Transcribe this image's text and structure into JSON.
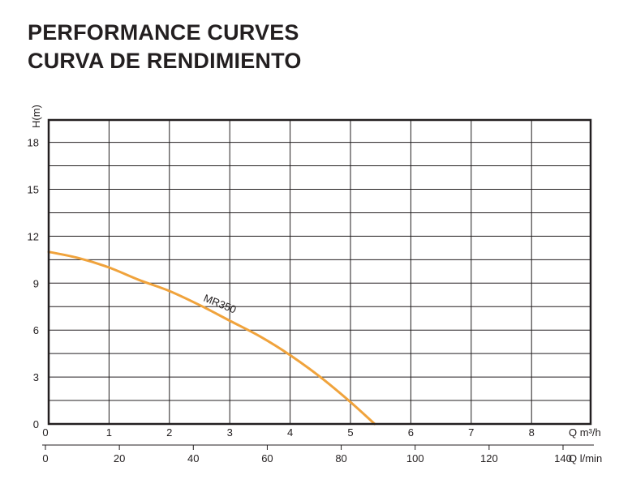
{
  "titles": {
    "line1": "PERFORMANCE CURVES",
    "line2": "CURVA DE RENDIMIENTO"
  },
  "colors": {
    "curve": "#f0a33c",
    "grid": "#231f20",
    "text": "#231f20"
  },
  "chart_data": {
    "type": "line",
    "ylabel": "H(m)",
    "xlabel": "Q m³/h",
    "x2label": "Q l/min",
    "ylim": [
      0,
      19.5
    ],
    "xlim": [
      0,
      9
    ],
    "x2lim": [
      0,
      148
    ],
    "y_ticks": [
      "0",
      "3",
      "6",
      "9",
      "12",
      "15",
      "18"
    ],
    "y_tick_values": [
      0,
      3,
      6,
      9,
      12,
      15,
      18
    ],
    "x_ticks": [
      "0",
      "1",
      "2",
      "3",
      "4",
      "5",
      "6",
      "7",
      "8"
    ],
    "x_tick_values": [
      0,
      1,
      2,
      3,
      4,
      5,
      6,
      7,
      8
    ],
    "x2_ticks": [
      "0",
      "20",
      "40",
      "60",
      "80",
      "100",
      "120",
      "140"
    ],
    "x2_tick_values": [
      0,
      20,
      40,
      60,
      80,
      100,
      120,
      140
    ],
    "grid": true,
    "series": [
      {
        "name": "MR350",
        "x": [
          0,
          0.5,
          1,
          1.5,
          2,
          2.5,
          3,
          3.5,
          4,
          4.5,
          5,
          5.4
        ],
        "y": [
          11.0,
          10.6,
          10.0,
          9.2,
          8.5,
          7.6,
          6.6,
          5.6,
          4.4,
          3.0,
          1.4,
          0
        ]
      }
    ]
  }
}
